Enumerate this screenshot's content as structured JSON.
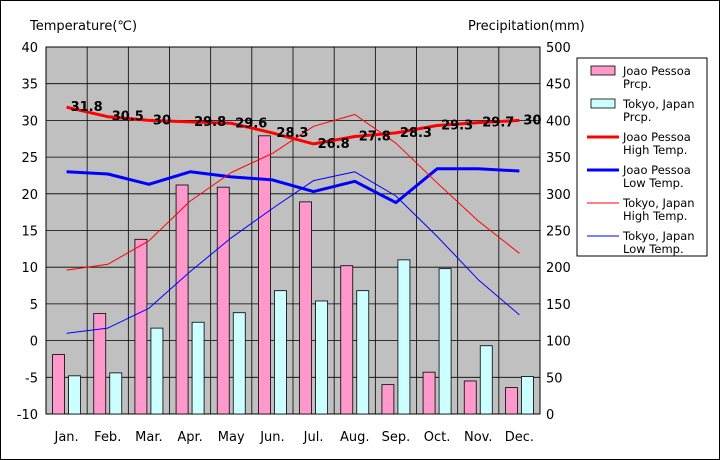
{
  "chart_data": {
    "type": "bar+line",
    "title": "",
    "left_axis": {
      "label": "Temperature(℃)",
      "min": -10,
      "max": 40,
      "step": 5
    },
    "right_axis": {
      "label": "Precipitation(mm)",
      "min": 0,
      "max": 500,
      "step": 50
    },
    "categories": [
      "Jan.",
      "Feb.",
      "Mar.",
      "Apr.",
      "May",
      "Jun.",
      "Jul.",
      "Aug.",
      "Sep.",
      "Oct.",
      "Nov.",
      "Dec."
    ],
    "bar_series": [
      {
        "name": "Joao Pessoa Prcp.",
        "name_lines": [
          "Joao Pessoa",
          "Prcp."
        ],
        "color": "#ff99cc",
        "values": [
          81,
          137,
          238,
          312,
          309,
          379,
          289,
          202,
          40,
          57,
          45,
          36
        ]
      },
      {
        "name": "Tokyo, Japan Prcp.",
        "name_lines": [
          "Tokyo, Japan",
          "Prcp."
        ],
        "color": "#ccffff",
        "values": [
          52,
          56,
          117,
          125,
          138,
          168,
          154,
          168,
          210,
          198,
          93,
          51
        ]
      }
    ],
    "line_series": [
      {
        "name": "Joao Pessoa High Temp.",
        "name_lines": [
          "Joao Pessoa",
          "High Temp."
        ],
        "color": "#ff0000",
        "width": 3,
        "values": [
          31.8,
          30.5,
          30.0,
          29.8,
          29.6,
          28.3,
          26.8,
          27.8,
          28.3,
          29.3,
          29.7,
          30.0
        ],
        "labels": [
          "31.8",
          "30.5",
          "30",
          "29.8",
          "29.6",
          "28.3",
          "26.8",
          "27.8",
          "28.3",
          "29.3",
          "29.7",
          "30"
        ]
      },
      {
        "name": "Joao Pessoa Low Temp.",
        "name_lines": [
          "Joao Pessoa",
          "Low Temp."
        ],
        "color": "#0000ff",
        "width": 3,
        "values": [
          23.0,
          22.7,
          21.3,
          23.0,
          22.3,
          21.9,
          20.3,
          21.7,
          18.8,
          23.4,
          23.4,
          23.1
        ]
      },
      {
        "name": "Tokyo, Japan High Temp.",
        "name_lines": [
          "Tokyo, Japan",
          "High Temp."
        ],
        "color": "#ff0000",
        "width": 1,
        "values": [
          9.6,
          10.4,
          13.6,
          19.0,
          22.9,
          25.5,
          29.2,
          30.8,
          26.9,
          21.5,
          16.3,
          11.9
        ]
      },
      {
        "name": "Tokyo, Japan Low Temp.",
        "name_lines": [
          "Tokyo, Japan",
          "Low Temp."
        ],
        "color": "#0000ff",
        "width": 1,
        "values": [
          1.0,
          1.7,
          4.4,
          9.4,
          14.0,
          18.0,
          21.8,
          23.0,
          19.7,
          14.2,
          8.3,
          3.5
        ]
      }
    ],
    "grid": true,
    "legend_position": "right",
    "plot_background": "#c0c0c0"
  }
}
